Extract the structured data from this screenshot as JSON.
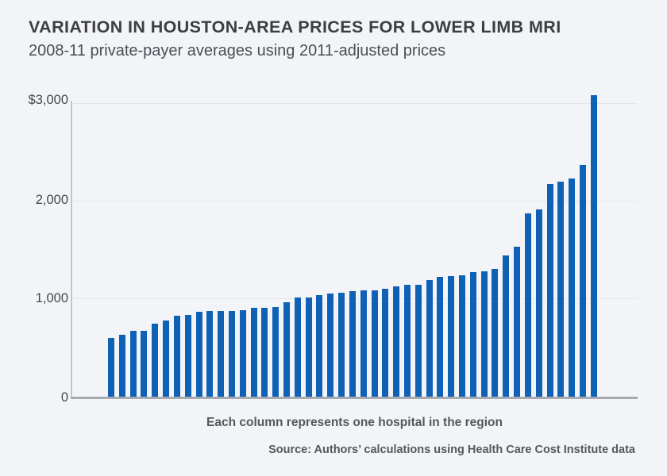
{
  "header": {
    "title": "VARIATION IN HOUSTON-AREA PRICES FOR LOWER LIMB MRI",
    "subtitle": "2008-11 private-payer averages using 2011-adjusted prices"
  },
  "chart_data": {
    "type": "bar",
    "title": "VARIATION IN HOUSTON-AREA PRICES FOR LOWER LIMB MRI",
    "subtitle": "2008-11 private-payer averages using 2011-adjusted prices",
    "unit": "USD",
    "ylim": [
      0,
      3100
    ],
    "y_ticks": [
      "$3,000",
      "2,000",
      "1,000",
      "0"
    ],
    "gridline_values": [
      1000,
      2000,
      3000
    ],
    "grid": "horizontal",
    "legend": "none",
    "x_caption": "Each column represents one hospital in the region",
    "bar_color": "#0f61b5",
    "values": [
      600,
      630,
      670,
      675,
      745,
      775,
      830,
      835,
      865,
      875,
      875,
      880,
      885,
      905,
      910,
      920,
      965,
      1010,
      1015,
      1040,
      1055,
      1060,
      1080,
      1085,
      1090,
      1100,
      1125,
      1140,
      1145,
      1195,
      1225,
      1230,
      1245,
      1275,
      1285,
      1305,
      1440,
      1530,
      1875,
      1915,
      2170,
      2195,
      2230,
      2370,
      3080
    ]
  },
  "footer": {
    "source": "Source: Authors’ calculations using Health Care Cost Institute data"
  },
  "colors": {
    "background": "#f3f4f8",
    "bar": "#0f61b5",
    "gridline": "#e3e5ea",
    "axis": "#a7aab1",
    "title_text": "#3b3e43",
    "body_text": "#54575d"
  }
}
